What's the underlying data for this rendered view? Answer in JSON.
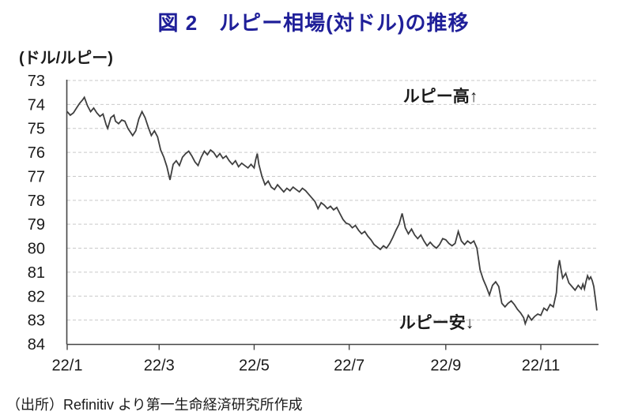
{
  "title": "図 2　ルピー相場(対ドル)の推移",
  "unit_label": "(ドル/ルピー)",
  "source": "（出所）Refinitiv より第一生命経済研究所作成",
  "annotations": {
    "high": "ルピー高↑",
    "low": "ルピー安↓"
  },
  "colors": {
    "title": "#1f1f99",
    "line": "#3f3f3f",
    "grid": "#c9c9c9",
    "axis": "#454545",
    "text": "#1a1a1a"
  },
  "chart_data": {
    "type": "line",
    "title": "図 2　ルピー相場(対ドル)の推移",
    "ylabel": "(ドル/ルピー)",
    "grid": "dashed-horizontal",
    "y_axis": {
      "min": 73,
      "max": 84,
      "inverted": true,
      "ticks": [
        73,
        74,
        75,
        76,
        77,
        78,
        79,
        80,
        81,
        82,
        83,
        84
      ]
    },
    "x_axis": {
      "unit": "days-from-2022-01-01",
      "domain_days": [
        0,
        340
      ],
      "ticks": [
        {
          "label": "22/1",
          "day": 0
        },
        {
          "label": "22/3",
          "day": 59
        },
        {
          "label": "22/5",
          "day": 120
        },
        {
          "label": "22/7",
          "day": 181
        },
        {
          "label": "22/9",
          "day": 243
        },
        {
          "label": "22/11",
          "day": 304
        }
      ]
    },
    "series_name": "ルピー相場（対ドル）",
    "points": [
      [
        0,
        74.3
      ],
      [
        2,
        74.45
      ],
      [
        4,
        74.35
      ],
      [
        6,
        74.15
      ],
      [
        8,
        73.95
      ],
      [
        10,
        73.8
      ],
      [
        11,
        73.7
      ],
      [
        13,
        74.05
      ],
      [
        15,
        74.3
      ],
      [
        17,
        74.15
      ],
      [
        19,
        74.35
      ],
      [
        21,
        74.5
      ],
      [
        23,
        74.4
      ],
      [
        25,
        74.85
      ],
      [
        26,
        75.0
      ],
      [
        28,
        74.55
      ],
      [
        30,
        74.45
      ],
      [
        31,
        74.7
      ],
      [
        33,
        74.8
      ],
      [
        35,
        74.65
      ],
      [
        37,
        74.7
      ],
      [
        39,
        75.0
      ],
      [
        42,
        75.3
      ],
      [
        44,
        75.1
      ],
      [
        46,
        74.6
      ],
      [
        48,
        74.3
      ],
      [
        50,
        74.55
      ],
      [
        52,
        74.95
      ],
      [
        54,
        75.3
      ],
      [
        56,
        75.1
      ],
      [
        58,
        75.35
      ],
      [
        60,
        75.9
      ],
      [
        62,
        76.2
      ],
      [
        64,
        76.6
      ],
      [
        66,
        77.15
      ],
      [
        68,
        76.5
      ],
      [
        70,
        76.35
      ],
      [
        72,
        76.55
      ],
      [
        74,
        76.2
      ],
      [
        76,
        76.05
      ],
      [
        78,
        75.95
      ],
      [
        80,
        76.15
      ],
      [
        82,
        76.4
      ],
      [
        84,
        76.55
      ],
      [
        86,
        76.2
      ],
      [
        88,
        75.95
      ],
      [
        90,
        76.1
      ],
      [
        92,
        75.9
      ],
      [
        94,
        76.0
      ],
      [
        96,
        76.2
      ],
      [
        98,
        76.05
      ],
      [
        100,
        76.25
      ],
      [
        102,
        76.15
      ],
      [
        104,
        76.35
      ],
      [
        106,
        76.5
      ],
      [
        108,
        76.35
      ],
      [
        110,
        76.6
      ],
      [
        112,
        76.45
      ],
      [
        114,
        76.55
      ],
      [
        116,
        76.65
      ],
      [
        118,
        76.5
      ],
      [
        120,
        76.65
      ],
      [
        121,
        76.3
      ],
      [
        122,
        76.05
      ],
      [
        123,
        76.5
      ],
      [
        125,
        77.0
      ],
      [
        127,
        77.35
      ],
      [
        129,
        77.2
      ],
      [
        131,
        77.45
      ],
      [
        133,
        77.55
      ],
      [
        135,
        77.35
      ],
      [
        137,
        77.5
      ],
      [
        139,
        77.65
      ],
      [
        141,
        77.5
      ],
      [
        143,
        77.6
      ],
      [
        145,
        77.45
      ],
      [
        147,
        77.55
      ],
      [
        149,
        77.65
      ],
      [
        151,
        77.5
      ],
      [
        153,
        77.6
      ],
      [
        155,
        77.75
      ],
      [
        157,
        77.9
      ],
      [
        159,
        78.05
      ],
      [
        161,
        78.35
      ],
      [
        163,
        78.1
      ],
      [
        165,
        78.2
      ],
      [
        167,
        78.35
      ],
      [
        169,
        78.25
      ],
      [
        171,
        78.4
      ],
      [
        173,
        78.3
      ],
      [
        175,
        78.55
      ],
      [
        177,
        78.8
      ],
      [
        179,
        78.95
      ],
      [
        181,
        79.0
      ],
      [
        183,
        79.15
      ],
      [
        185,
        79.05
      ],
      [
        187,
        79.25
      ],
      [
        189,
        79.4
      ],
      [
        191,
        79.3
      ],
      [
        193,
        79.5
      ],
      [
        195,
        79.65
      ],
      [
        197,
        79.85
      ],
      [
        199,
        79.95
      ],
      [
        201,
        80.05
      ],
      [
        203,
        79.9
      ],
      [
        205,
        80.0
      ],
      [
        207,
        79.8
      ],
      [
        209,
        79.55
      ],
      [
        211,
        79.25
      ],
      [
        213,
        79.0
      ],
      [
        215,
        78.55
      ],
      [
        217,
        79.15
      ],
      [
        219,
        79.4
      ],
      [
        221,
        79.2
      ],
      [
        223,
        79.45
      ],
      [
        225,
        79.6
      ],
      [
        227,
        79.45
      ],
      [
        229,
        79.7
      ],
      [
        231,
        79.9
      ],
      [
        233,
        79.75
      ],
      [
        235,
        79.9
      ],
      [
        237,
        80.0
      ],
      [
        239,
        79.85
      ],
      [
        241,
        79.6
      ],
      [
        243,
        79.65
      ],
      [
        245,
        79.8
      ],
      [
        247,
        79.9
      ],
      [
        249,
        79.8
      ],
      [
        251,
        79.3
      ],
      [
        253,
        79.7
      ],
      [
        255,
        79.85
      ],
      [
        257,
        79.7
      ],
      [
        259,
        79.8
      ],
      [
        261,
        79.7
      ],
      [
        263,
        80.0
      ],
      [
        265,
        80.9
      ],
      [
        267,
        81.3
      ],
      [
        269,
        81.6
      ],
      [
        271,
        81.95
      ],
      [
        273,
        81.55
      ],
      [
        275,
        81.4
      ],
      [
        277,
        81.6
      ],
      [
        279,
        82.3
      ],
      [
        281,
        82.45
      ],
      [
        283,
        82.3
      ],
      [
        285,
        82.2
      ],
      [
        287,
        82.35
      ],
      [
        289,
        82.55
      ],
      [
        291,
        82.7
      ],
      [
        293,
        82.9
      ],
      [
        294,
        83.15
      ],
      [
        296,
        82.8
      ],
      [
        298,
        83.0
      ],
      [
        300,
        82.85
      ],
      [
        302,
        82.75
      ],
      [
        304,
        82.8
      ],
      [
        306,
        82.5
      ],
      [
        308,
        82.6
      ],
      [
        310,
        82.35
      ],
      [
        312,
        82.45
      ],
      [
        314,
        81.85
      ],
      [
        315,
        80.85
      ],
      [
        316,
        80.5
      ],
      [
        317,
        80.9
      ],
      [
        318,
        81.25
      ],
      [
        320,
        81.05
      ],
      [
        322,
        81.45
      ],
      [
        324,
        81.6
      ],
      [
        326,
        81.75
      ],
      [
        328,
        81.55
      ],
      [
        330,
        81.7
      ],
      [
        331,
        81.5
      ],
      [
        332,
        81.7
      ],
      [
        333,
        81.4
      ],
      [
        334,
        81.15
      ],
      [
        335,
        81.3
      ],
      [
        336,
        81.2
      ],
      [
        337,
        81.35
      ],
      [
        338,
        81.6
      ],
      [
        339,
        82.1
      ],
      [
        340,
        82.6
      ]
    ]
  }
}
